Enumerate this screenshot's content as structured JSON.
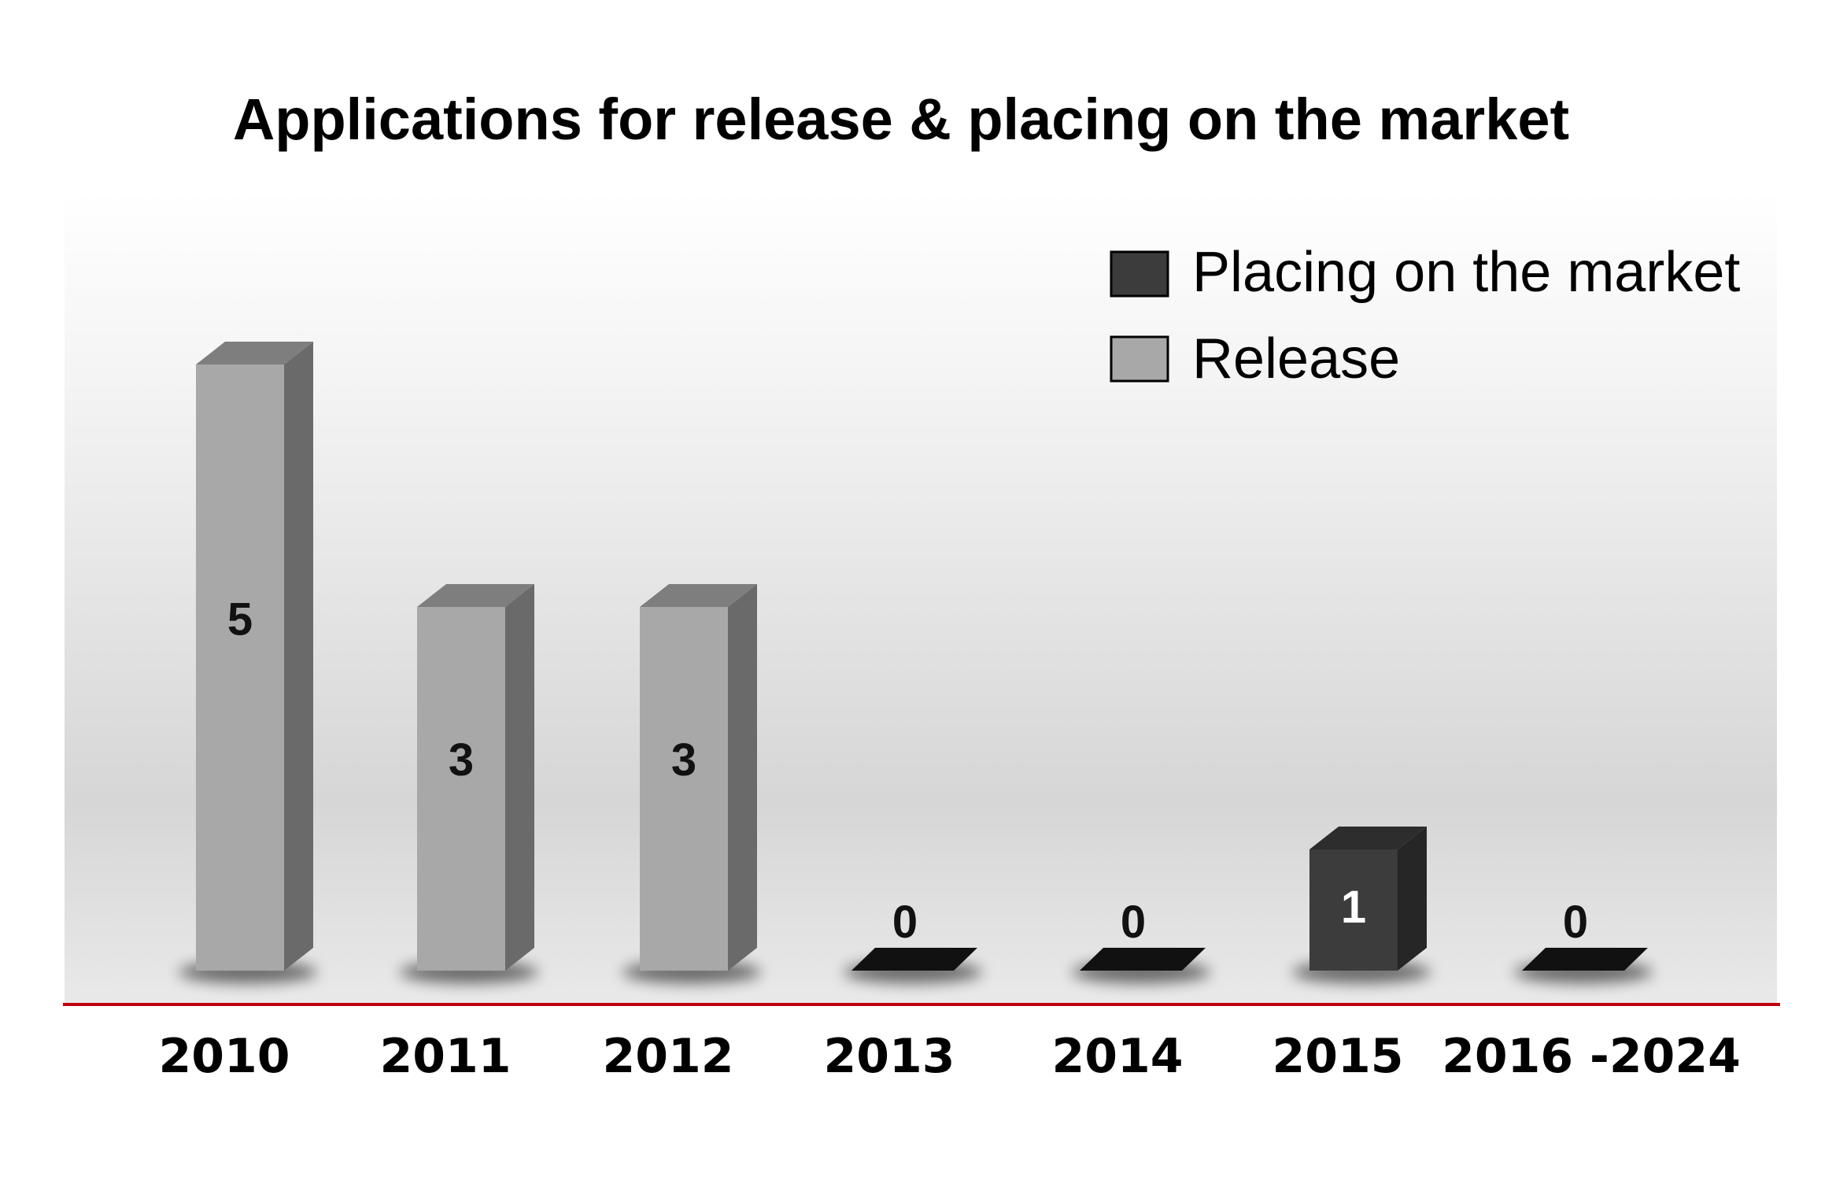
{
  "chart_data": {
    "type": "bar",
    "title": "Applications for release & placing on the market",
    "categories": [
      "2010",
      "2011",
      "2012",
      "2013",
      "2014",
      "2015",
      "2016 -2024"
    ],
    "series": [
      {
        "name": "Placing on the market",
        "color": "#3c3c3c",
        "values": [
          0,
          0,
          0,
          0,
          0,
          1,
          0
        ]
      },
      {
        "name": "Release",
        "color": "#a8a8a8",
        "values": [
          5,
          3,
          3,
          0,
          0,
          0,
          0
        ]
      }
    ],
    "data_labels": [
      "5",
      "3",
      "3",
      "0",
      "0",
      "1",
      "0"
    ],
    "ylim": [
      0,
      5
    ],
    "grid": false,
    "legend_position": "top-right",
    "baseline_color": "#c0000b",
    "style": "3d-columns"
  }
}
